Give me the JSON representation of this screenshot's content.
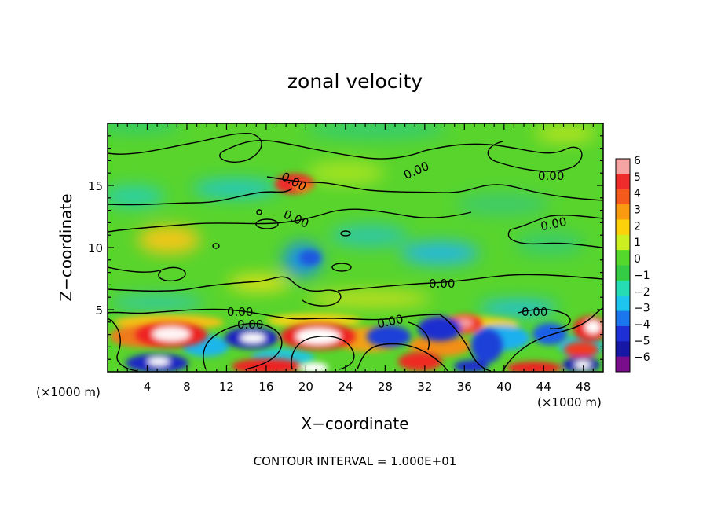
{
  "chart_data": {
    "type": "heatmap",
    "title": "zonal velocity",
    "xlabel": "X−coordinate",
    "ylabel": "Z−coordinate",
    "x_unit_left": "(×1000 m)",
    "x_unit_right": "(×1000 m)",
    "xlim": [
      0,
      50
    ],
    "ylim": [
      0,
      20
    ],
    "x_ticks": [
      4,
      8,
      12,
      16,
      20,
      24,
      28,
      32,
      36,
      40,
      44,
      48
    ],
    "y_ticks": [
      5,
      10,
      15
    ],
    "colorbar": {
      "ticks": [
        "6",
        "5",
        "4",
        "3",
        "2",
        "1",
        "0",
        "−1",
        "−2",
        "−3",
        "−4",
        "−5",
        "−6"
      ],
      "colors": [
        "#f6a3a3",
        "#ef2c2c",
        "#f45a1c",
        "#f99a10",
        "#fbd10b",
        "#ccef22",
        "#55d82c",
        "#33cc44",
        "#25dcb4",
        "#1ec5ee",
        "#1a77ee",
        "#1e2fd6",
        "#1717a6",
        "#7a0d8c"
      ]
    },
    "contour_label": "0.00",
    "contour_interval_text": "CONTOUR INTERVAL = 1.000E+01",
    "features": [
      {
        "x": 6.4,
        "z": 3.0,
        "value": 6
      },
      {
        "x": 6.0,
        "z": 1.0,
        "value": -5
      },
      {
        "x": 15.2,
        "z": 2.6,
        "value": -5
      },
      {
        "x": 20.8,
        "z": 2.8,
        "value": 6
      },
      {
        "x": 20.6,
        "z": 0.4,
        "value": 6
      },
      {
        "x": 29.0,
        "z": 2.8,
        "value": -4
      },
      {
        "x": 33.5,
        "z": 3.5,
        "value": -4
      },
      {
        "x": 36.2,
        "z": 4.0,
        "value": 5
      },
      {
        "x": 33.0,
        "z": 1.2,
        "value": 4
      },
      {
        "x": 43.5,
        "z": 0.5,
        "value": 5
      },
      {
        "x": 49.0,
        "z": 3.6,
        "value": 5
      },
      {
        "x": 48.5,
        "z": 0.6,
        "value": -5
      },
      {
        "x": 20.5,
        "z": 15.4,
        "value": 5
      },
      {
        "x": 17.5,
        "z": 9.2,
        "value": -3
      },
      {
        "x": 34.0,
        "z": 9.5,
        "value": -2
      },
      {
        "x": 14.0,
        "z": 14.8,
        "value": -2
      },
      {
        "x": 6.0,
        "z": 10.5,
        "value": 3
      }
    ]
  }
}
